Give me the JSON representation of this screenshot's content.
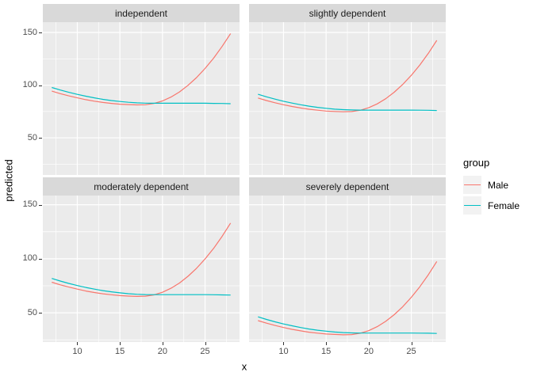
{
  "chart_data": {
    "type": "line",
    "xlabel": "x",
    "ylabel": "predicted",
    "x_ticks": [
      10,
      15,
      20,
      25
    ],
    "y_ticks": [
      150,
      100,
      50
    ],
    "x_minor": [
      7.5,
      12.5,
      17.5,
      22.5,
      27.5
    ],
    "y_minor": [
      25,
      75,
      125
    ],
    "xlim": [
      7,
      28
    ],
    "ylim": [
      15,
      160
    ],
    "grid": "on",
    "panel_bg": "#EBEBEB",
    "strip_bg": "#D9D9D9",
    "grid_color": "#FFFFFF",
    "tick_text_color": "#4D4D4D",
    "legend": {
      "title": "group",
      "position": "right",
      "entries": [
        {
          "label": "Male",
          "color": "#F8766D"
        },
        {
          "label": "Female",
          "color": "#00BFC4"
        }
      ]
    },
    "x": [
      7,
      8,
      9,
      10,
      11,
      12,
      13,
      14,
      15,
      16,
      17,
      18,
      19,
      20,
      21,
      22,
      23,
      24,
      25,
      26,
      27,
      28
    ],
    "facets": [
      {
        "label": "independent",
        "series": [
          {
            "name": "Male",
            "color": "#F8766D",
            "values": [
              94.3,
              91.9,
              89.8,
              87.9,
              86.2,
              84.8,
              83.6,
              82.7,
              81.9,
              81.5,
              81.2,
              81.4,
              82.6,
              85.0,
              88.7,
              93.6,
              99.8,
              107.2,
              115.8,
              125.6,
              136.7,
              149.0
            ]
          },
          {
            "name": "Female",
            "color": "#00BFC4",
            "values": [
              97.8,
              95.4,
              93.2,
              91.2,
              89.5,
              87.9,
              86.5,
              85.4,
              84.5,
              83.7,
              83.2,
              82.9,
              82.8,
              82.8,
              82.8,
              82.8,
              82.8,
              82.8,
              82.8,
              82.7,
              82.6,
              82.4
            ]
          }
        ]
      },
      {
        "label": "slightly dependent",
        "series": [
          {
            "name": "Male",
            "color": "#F8766D",
            "values": [
              87.8,
              85.4,
              83.3,
              81.4,
              79.7,
              78.3,
              77.1,
              76.2,
              75.4,
              75.0,
              74.7,
              74.9,
              76.1,
              78.5,
              82.2,
              87.1,
              93.3,
              100.7,
              109.3,
              119.1,
              130.2,
              142.5
            ]
          },
          {
            "name": "Female",
            "color": "#00BFC4",
            "values": [
              91.3,
              88.9,
              86.7,
              84.7,
              83.0,
              81.4,
              80.0,
              78.9,
              78.0,
              77.2,
              76.7,
              76.4,
              76.3,
              76.3,
              76.3,
              76.3,
              76.3,
              76.3,
              76.3,
              76.2,
              76.1,
              75.9
            ]
          }
        ]
      },
      {
        "label": "moderately dependent",
        "series": [
          {
            "name": "Male",
            "color": "#F8766D",
            "values": [
              78.3,
              75.9,
              73.8,
              71.9,
              70.2,
              68.8,
              67.6,
              66.7,
              65.9,
              65.5,
              65.2,
              65.4,
              66.6,
              69.0,
              72.7,
              77.6,
              83.8,
              91.2,
              99.8,
              109.6,
              120.7,
              133.0
            ]
          },
          {
            "name": "Female",
            "color": "#00BFC4",
            "values": [
              81.8,
              79.4,
              77.2,
              75.2,
              73.5,
              71.9,
              70.5,
              69.4,
              68.5,
              67.7,
              67.2,
              66.9,
              66.8,
              66.8,
              66.8,
              66.8,
              66.8,
              66.8,
              66.8,
              66.7,
              66.6,
              66.4
            ]
          }
        ]
      },
      {
        "label": "severely dependent",
        "series": [
          {
            "name": "Male",
            "color": "#F8766D",
            "values": [
              42.8,
              40.4,
              38.3,
              36.4,
              34.7,
              33.3,
              32.1,
              31.2,
              30.4,
              30.0,
              29.7,
              29.9,
              31.1,
              33.5,
              37.2,
              42.1,
              48.3,
              55.7,
              64.3,
              74.1,
              85.2,
              97.5
            ]
          },
          {
            "name": "Female",
            "color": "#00BFC4",
            "values": [
              46.3,
              43.9,
              41.7,
              39.7,
              38.0,
              36.4,
              35.0,
              33.9,
              33.0,
              32.2,
              31.7,
              31.4,
              31.3,
              31.3,
              31.3,
              31.3,
              31.3,
              31.3,
              31.3,
              31.2,
              31.1,
              30.9
            ]
          }
        ]
      }
    ]
  }
}
